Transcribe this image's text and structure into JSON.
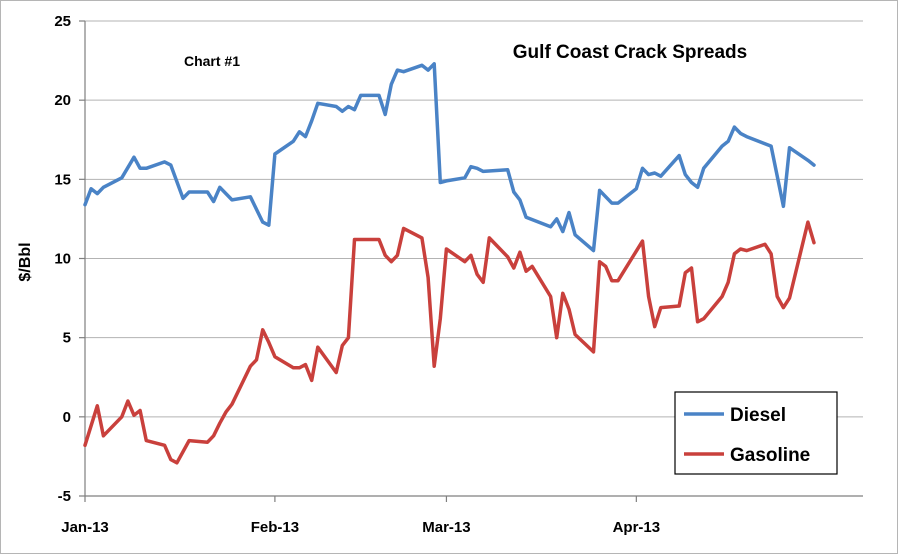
{
  "chart_data": {
    "type": "line",
    "title": "Gulf Coast Crack Spreads",
    "annotation": "Chart #1",
    "ylabel": "$/Bbl",
    "xlabel": "",
    "ylim": [
      -5,
      25
    ],
    "yticks": [
      -5,
      0,
      5,
      10,
      15,
      20,
      25
    ],
    "xlim": [
      "2013-01-01",
      "2013-05-08"
    ],
    "xticks": [
      {
        "date": "2013-01-01",
        "label": "Jan-13"
      },
      {
        "date": "2013-02-01",
        "label": "Feb-13"
      },
      {
        "date": "2013-03-01",
        "label": "Mar-13"
      },
      {
        "date": "2013-04-01",
        "label": "Apr-13"
      }
    ],
    "grid": true,
    "legend": "bottom-right",
    "series": [
      {
        "name": "Diesel",
        "color": "#4a83c6",
        "points": [
          [
            "2013-01-01",
            13.4
          ],
          [
            "2013-01-02",
            14.4
          ],
          [
            "2013-01-03",
            14.1
          ],
          [
            "2013-01-04",
            14.5
          ],
          [
            "2013-01-07",
            15.1
          ],
          [
            "2013-01-09",
            16.4
          ],
          [
            "2013-01-10",
            15.7
          ],
          [
            "2013-01-11",
            15.7
          ],
          [
            "2013-01-14",
            16.1
          ],
          [
            "2013-01-15",
            15.9
          ],
          [
            "2013-01-17",
            13.8
          ],
          [
            "2013-01-18",
            14.2
          ],
          [
            "2013-01-21",
            14.2
          ],
          [
            "2013-01-22",
            13.6
          ],
          [
            "2013-01-23",
            14.5
          ],
          [
            "2013-01-25",
            13.7
          ],
          [
            "2013-01-28",
            13.9
          ],
          [
            "2013-01-30",
            12.3
          ],
          [
            "2013-01-31",
            12.1
          ],
          [
            "2013-02-01",
            16.6
          ],
          [
            "2013-02-04",
            17.4
          ],
          [
            "2013-02-05",
            18.0
          ],
          [
            "2013-02-06",
            17.7
          ],
          [
            "2013-02-07",
            18.7
          ],
          [
            "2013-02-08",
            19.8
          ],
          [
            "2013-02-11",
            19.6
          ],
          [
            "2013-02-12",
            19.3
          ],
          [
            "2013-02-13",
            19.6
          ],
          [
            "2013-02-14",
            19.4
          ],
          [
            "2013-02-15",
            20.3
          ],
          [
            "2013-02-18",
            20.3
          ],
          [
            "2013-02-19",
            19.1
          ],
          [
            "2013-02-20",
            21.0
          ],
          [
            "2013-02-21",
            21.9
          ],
          [
            "2013-02-22",
            21.8
          ],
          [
            "2013-02-25",
            22.2
          ],
          [
            "2013-02-26",
            21.9
          ],
          [
            "2013-02-27",
            22.3
          ],
          [
            "2013-02-28",
            14.8
          ],
          [
            "2013-03-01",
            14.9
          ],
          [
            "2013-03-04",
            15.1
          ],
          [
            "2013-03-05",
            15.8
          ],
          [
            "2013-03-06",
            15.7
          ],
          [
            "2013-03-07",
            15.5
          ],
          [
            "2013-03-11",
            15.6
          ],
          [
            "2013-03-12",
            14.2
          ],
          [
            "2013-03-13",
            13.7
          ],
          [
            "2013-03-14",
            12.6
          ],
          [
            "2013-03-18",
            12.0
          ],
          [
            "2013-03-19",
            12.5
          ],
          [
            "2013-03-20",
            11.7
          ],
          [
            "2013-03-21",
            12.9
          ],
          [
            "2013-03-22",
            11.5
          ],
          [
            "2013-03-25",
            10.5
          ],
          [
            "2013-03-26",
            14.3
          ],
          [
            "2013-03-28",
            13.5
          ],
          [
            "2013-03-29",
            13.5
          ],
          [
            "2013-04-01",
            14.4
          ],
          [
            "2013-04-02",
            15.7
          ],
          [
            "2013-04-03",
            15.3
          ],
          [
            "2013-04-04",
            15.4
          ],
          [
            "2013-04-05",
            15.2
          ],
          [
            "2013-04-08",
            16.5
          ],
          [
            "2013-04-09",
            15.3
          ],
          [
            "2013-04-10",
            14.8
          ],
          [
            "2013-04-11",
            14.5
          ],
          [
            "2013-04-12",
            15.7
          ],
          [
            "2013-04-15",
            17.1
          ],
          [
            "2013-04-16",
            17.4
          ],
          [
            "2013-04-17",
            18.3
          ],
          [
            "2013-04-18",
            17.9
          ],
          [
            "2013-04-19",
            17.7
          ],
          [
            "2013-04-23",
            17.1
          ],
          [
            "2013-04-25",
            13.3
          ],
          [
            "2013-04-26",
            17.0
          ],
          [
            "2013-04-29",
            16.2
          ],
          [
            "2013-04-30",
            15.9
          ]
        ]
      },
      {
        "name": "Gasoline",
        "color": "#c9403c",
        "points": [
          [
            "2013-01-01",
            -1.8
          ],
          [
            "2013-01-03",
            0.7
          ],
          [
            "2013-01-04",
            -1.2
          ],
          [
            "2013-01-07",
            0.0
          ],
          [
            "2013-01-08",
            1.0
          ],
          [
            "2013-01-09",
            0.1
          ],
          [
            "2013-01-10",
            0.4
          ],
          [
            "2013-01-11",
            -1.5
          ],
          [
            "2013-01-14",
            -1.8
          ],
          [
            "2013-01-15",
            -2.7
          ],
          [
            "2013-01-16",
            -2.9
          ],
          [
            "2013-01-18",
            -1.5
          ],
          [
            "2013-01-21",
            -1.6
          ],
          [
            "2013-01-22",
            -1.2
          ],
          [
            "2013-01-23",
            -0.4
          ],
          [
            "2013-01-24",
            0.3
          ],
          [
            "2013-01-25",
            0.8
          ],
          [
            "2013-01-28",
            3.2
          ],
          [
            "2013-01-29",
            3.6
          ],
          [
            "2013-01-30",
            5.5
          ],
          [
            "2013-01-31",
            4.7
          ],
          [
            "2013-02-01",
            3.8
          ],
          [
            "2013-02-04",
            3.1
          ],
          [
            "2013-02-05",
            3.1
          ],
          [
            "2013-02-06",
            3.3
          ],
          [
            "2013-02-07",
            2.3
          ],
          [
            "2013-02-08",
            4.4
          ],
          [
            "2013-02-11",
            2.8
          ],
          [
            "2013-02-12",
            4.5
          ],
          [
            "2013-02-13",
            5.0
          ],
          [
            "2013-02-14",
            11.2
          ],
          [
            "2013-02-18",
            11.2
          ],
          [
            "2013-02-19",
            10.2
          ],
          [
            "2013-02-20",
            9.8
          ],
          [
            "2013-02-21",
            10.2
          ],
          [
            "2013-02-22",
            11.9
          ],
          [
            "2013-02-25",
            11.3
          ],
          [
            "2013-02-26",
            8.8
          ],
          [
            "2013-02-27",
            3.2
          ],
          [
            "2013-02-28",
            6.2
          ],
          [
            "2013-03-01",
            10.6
          ],
          [
            "2013-03-04",
            9.8
          ],
          [
            "2013-03-05",
            10.2
          ],
          [
            "2013-03-06",
            9.0
          ],
          [
            "2013-03-07",
            8.5
          ],
          [
            "2013-03-08",
            11.3
          ],
          [
            "2013-03-11",
            10.1
          ],
          [
            "2013-03-12",
            9.4
          ],
          [
            "2013-03-13",
            10.4
          ],
          [
            "2013-03-14",
            9.2
          ],
          [
            "2013-03-15",
            9.5
          ],
          [
            "2013-03-18",
            7.6
          ],
          [
            "2013-03-19",
            5.0
          ],
          [
            "2013-03-20",
            7.8
          ],
          [
            "2013-03-21",
            6.8
          ],
          [
            "2013-03-22",
            5.2
          ],
          [
            "2013-03-25",
            4.1
          ],
          [
            "2013-03-26",
            9.8
          ],
          [
            "2013-03-27",
            9.5
          ],
          [
            "2013-03-28",
            8.6
          ],
          [
            "2013-03-29",
            8.6
          ],
          [
            "2013-04-02",
            11.1
          ],
          [
            "2013-04-03",
            7.6
          ],
          [
            "2013-04-04",
            5.7
          ],
          [
            "2013-04-05",
            6.9
          ],
          [
            "2013-04-08",
            7.0
          ],
          [
            "2013-04-09",
            9.1
          ],
          [
            "2013-04-10",
            9.4
          ],
          [
            "2013-04-11",
            6.0
          ],
          [
            "2013-04-12",
            6.2
          ],
          [
            "2013-04-15",
            7.6
          ],
          [
            "2013-04-16",
            8.5
          ],
          [
            "2013-04-17",
            10.3
          ],
          [
            "2013-04-18",
            10.6
          ],
          [
            "2013-04-19",
            10.5
          ],
          [
            "2013-04-22",
            10.9
          ],
          [
            "2013-04-23",
            10.3
          ],
          [
            "2013-04-24",
            7.6
          ],
          [
            "2013-04-25",
            6.9
          ],
          [
            "2013-04-26",
            7.5
          ],
          [
            "2013-04-29",
            12.3
          ],
          [
            "2013-04-30",
            11.0
          ]
        ]
      }
    ]
  }
}
